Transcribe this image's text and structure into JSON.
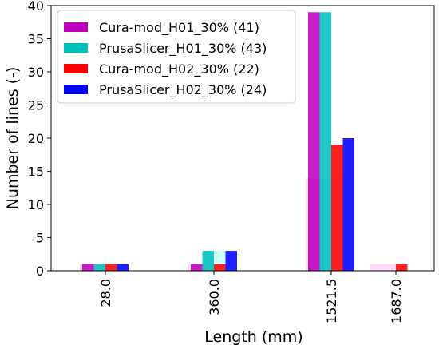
{
  "chart_data": {
    "type": "bar",
    "xlabel": "Length (mm)",
    "ylabel": "Number of lines (-)",
    "ylim": [
      0,
      40
    ],
    "yticks": [
      "0",
      "5",
      "10",
      "15",
      "20",
      "25",
      "30",
      "35",
      "40"
    ],
    "categories": [
      "28.0",
      "360.0",
      "1521.5",
      "1687.0"
    ],
    "grid": false,
    "legend_position": "top-left",
    "series": [
      {
        "name": "Cura-mod_H01_30% (41)",
        "color": "#bf00bf",
        "values": [
          1,
          1,
          39,
          0
        ]
      },
      {
        "name": "PrusaSlicer_H01_30% (43)",
        "color": "#00bfbf",
        "values": [
          1,
          3,
          39,
          0
        ]
      },
      {
        "name": "Cura-mod_H02_30% (22)",
        "color": "#ff0000",
        "values": [
          1,
          1,
          19,
          1
        ]
      },
      {
        "name": "PrusaSlicer_H02_30% (24)",
        "color": "#0000ff",
        "values": [
          1,
          3,
          20,
          0
        ]
      }
    ],
    "background_series": [
      {
        "color": "#ffb6f0",
        "values": [
          1,
          1,
          14,
          1
        ]
      },
      {
        "color": "#a6fff6",
        "values": [
          0,
          3,
          14,
          0
        ]
      }
    ]
  }
}
